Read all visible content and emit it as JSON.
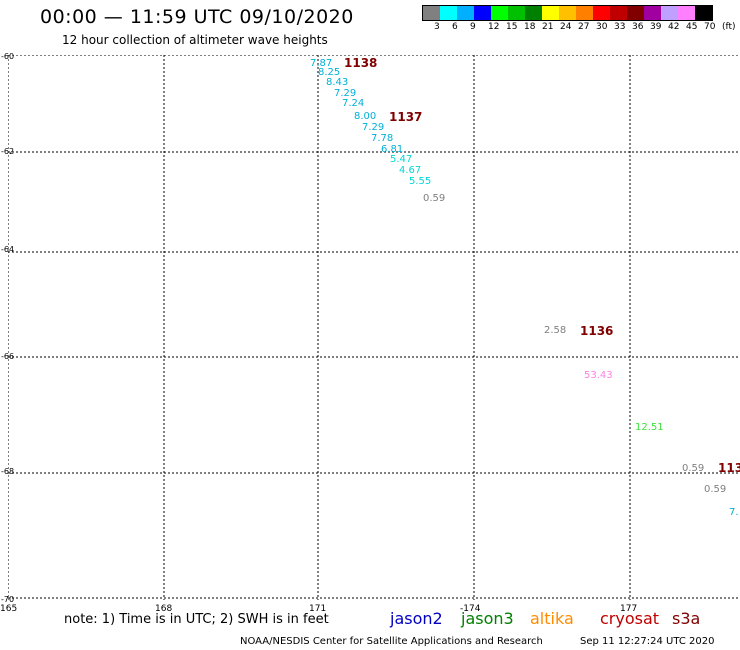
{
  "header": {
    "title": "00:00 — 11:59 UTC 09/10/2020",
    "subtitle": "12 hour collection of altimeter wave heights"
  },
  "legend": {
    "colors": [
      "#808080",
      "#00ffff",
      "#00b0ff",
      "#0000ff",
      "#00ff00",
      "#00c000",
      "#008000",
      "#ffff00",
      "#ffc000",
      "#ff8000",
      "#ff0000",
      "#c00000",
      "#800000",
      "#a000a0",
      "#c0a0ff",
      "#ff80ff",
      "#000000"
    ],
    "labels": [
      "3",
      "6",
      "9",
      "12",
      "15",
      "18",
      "21",
      "24",
      "27",
      "30",
      "33",
      "36",
      "39",
      "42",
      "45",
      "70",
      "(ft)"
    ]
  },
  "map": {
    "lat_labels": [
      "-60",
      "-62",
      "-64",
      "-66",
      "-68",
      "-70"
    ],
    "lon_labels": [
      "165",
      "168",
      "171",
      "-174",
      "177"
    ],
    "pass_labels": [
      {
        "text": "1138"
      },
      {
        "text": "1137"
      },
      {
        "text": "1136"
      },
      {
        "text": "113"
      }
    ],
    "observations": [
      {
        "text": "7.87",
        "color": "#00b0d8"
      },
      {
        "text": "8.25",
        "color": "#00b0d8"
      },
      {
        "text": "8.43",
        "color": "#00b0d8"
      },
      {
        "text": "7.29",
        "color": "#00b0d8"
      },
      {
        "text": "7.24",
        "color": "#00b0d8"
      },
      {
        "text": "8.00",
        "color": "#00b0d8"
      },
      {
        "text": "7.29",
        "color": "#00b0d8"
      },
      {
        "text": "7.78",
        "color": "#00b0d8"
      },
      {
        "text": "6.81",
        "color": "#00b0d8"
      },
      {
        "text": "5.47",
        "color": "#00d8d8"
      },
      {
        "text": "4.67",
        "color": "#00d8d8"
      },
      {
        "text": "5.55",
        "color": "#00d8d8"
      },
      {
        "text": "0.59",
        "color": "#808080"
      },
      {
        "text": "2.58",
        "color": "#808080"
      },
      {
        "text": "53.43",
        "color": "#ff80e0"
      },
      {
        "text": "12.51",
        "color": "#40e040"
      },
      {
        "text": "0.59",
        "color": "#808080"
      },
      {
        "text": "0.59",
        "color": "#808080"
      },
      {
        "text": "7.",
        "color": "#00b0d8"
      }
    ]
  },
  "footer": {
    "note": "note: 1) Time is in UTC; 2) SWH is in feet",
    "satellites": [
      {
        "name": "jason2",
        "color": "#0000c0"
      },
      {
        "name": "jason3",
        "color": "#008000"
      },
      {
        "name": "altika",
        "color": "#ff8c00"
      },
      {
        "name": "cryosat",
        "color": "#c00000"
      },
      {
        "name": "s3a",
        "color": "#800000"
      }
    ],
    "credit": "NOAA/NESDIS Center for Satellite Applications and Research",
    "timestamp": "Sep 11 12:27:24 UTC 2020"
  }
}
